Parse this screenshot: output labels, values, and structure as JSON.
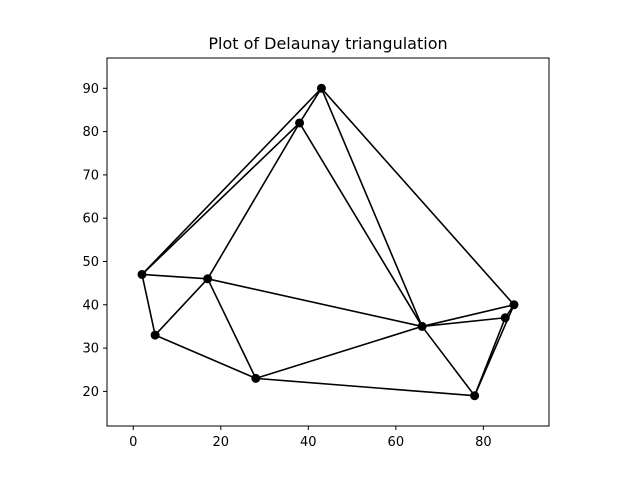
{
  "chart_data": {
    "type": "scatter",
    "title": "Plot of Delaunay triangulation",
    "xlabel": "",
    "ylabel": "",
    "xlim": [
      -6,
      95
    ],
    "ylim": [
      12,
      97
    ],
    "x_ticks": [
      0,
      20,
      40,
      60,
      80
    ],
    "y_ticks": [
      20,
      30,
      40,
      50,
      60,
      70,
      80,
      90
    ],
    "grid": false,
    "legend": "none",
    "points": [
      {
        "x": 43,
        "y": 90
      },
      {
        "x": 38,
        "y": 82
      },
      {
        "x": 2,
        "y": 47
      },
      {
        "x": 17,
        "y": 46
      },
      {
        "x": 5,
        "y": 33
      },
      {
        "x": 28,
        "y": 23
      },
      {
        "x": 66,
        "y": 35
      },
      {
        "x": 87,
        "y": 40
      },
      {
        "x": 85,
        "y": 37
      },
      {
        "x": 78,
        "y": 19
      }
    ],
    "edges": [
      [
        0,
        1
      ],
      [
        0,
        2
      ],
      [
        0,
        6
      ],
      [
        0,
        7
      ],
      [
        1,
        2
      ],
      [
        1,
        3
      ],
      [
        1,
        6
      ],
      [
        2,
        3
      ],
      [
        2,
        4
      ],
      [
        3,
        4
      ],
      [
        3,
        5
      ],
      [
        3,
        6
      ],
      [
        4,
        5
      ],
      [
        5,
        6
      ],
      [
        5,
        9
      ],
      [
        6,
        7
      ],
      [
        6,
        8
      ],
      [
        6,
        9
      ],
      [
        7,
        8
      ],
      [
        7,
        9
      ],
      [
        8,
        9
      ]
    ],
    "colors": {
      "line": "#000000",
      "marker": "#000000",
      "axes": "#000000",
      "background": "#ffffff"
    }
  }
}
